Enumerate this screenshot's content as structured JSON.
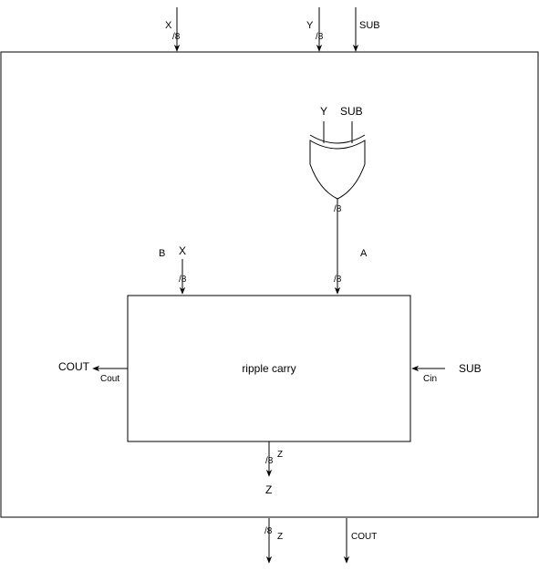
{
  "colors": {
    "stroke": "#000000",
    "background": "#ffffff"
  },
  "top_inputs": {
    "x_label": "X",
    "x_width": "/8",
    "y_label": "Y",
    "y_width": "/8",
    "sub_label": "SUB"
  },
  "xor_gate": {
    "in_y": "Y",
    "in_sub": "SUB",
    "out_width": "/8"
  },
  "ripple_carry": {
    "title": "ripple carry",
    "port_b_name": "B",
    "port_b_signal": "X",
    "port_b_width": "/8",
    "port_a_name": "A",
    "port_a_width": "/8",
    "cout_signal": "COUT",
    "cout_port": "Cout",
    "cin_signal": "SUB",
    "cin_port": "Cin",
    "z_port": "Z",
    "z_width": "/8",
    "z_signal": "Z"
  },
  "outputs": {
    "z_width": "/8",
    "z_label": "Z",
    "cout_label": "COUT"
  }
}
